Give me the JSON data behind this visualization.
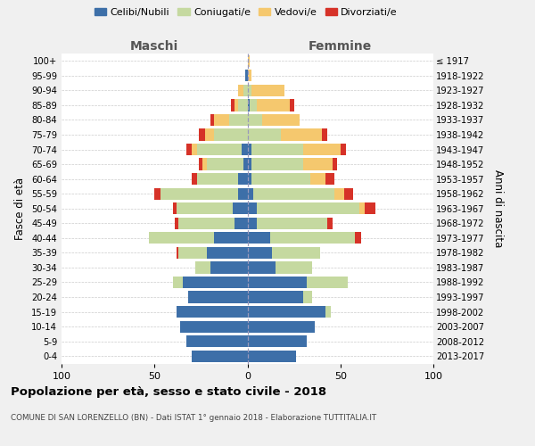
{
  "age_groups": [
    "0-4",
    "5-9",
    "10-14",
    "15-19",
    "20-24",
    "25-29",
    "30-34",
    "35-39",
    "40-44",
    "45-49",
    "50-54",
    "55-59",
    "60-64",
    "65-69",
    "70-74",
    "75-79",
    "80-84",
    "85-89",
    "90-94",
    "95-99",
    "100+"
  ],
  "birth_years": [
    "2013-2017",
    "2008-2012",
    "2003-2007",
    "1998-2002",
    "1993-1997",
    "1988-1992",
    "1983-1987",
    "1978-1982",
    "1973-1977",
    "1968-1972",
    "1963-1967",
    "1958-1962",
    "1953-1957",
    "1948-1952",
    "1943-1947",
    "1938-1942",
    "1933-1937",
    "1928-1932",
    "1923-1927",
    "1918-1922",
    "≤ 1917"
  ],
  "males": {
    "celibi": [
      30,
      33,
      36,
      38,
      32,
      35,
      20,
      22,
      18,
      7,
      8,
      5,
      5,
      2,
      3,
      0,
      0,
      0,
      0,
      1,
      0
    ],
    "coniugati": [
      0,
      0,
      0,
      0,
      0,
      5,
      8,
      15,
      35,
      30,
      30,
      42,
      22,
      20,
      24,
      18,
      10,
      5,
      2,
      0,
      0
    ],
    "vedovi": [
      0,
      0,
      0,
      0,
      0,
      0,
      0,
      0,
      0,
      0,
      0,
      0,
      0,
      2,
      3,
      5,
      8,
      2,
      3,
      0,
      0
    ],
    "divorziati": [
      0,
      0,
      0,
      0,
      0,
      0,
      0,
      1,
      0,
      2,
      2,
      3,
      3,
      2,
      3,
      3,
      2,
      2,
      0,
      0,
      0
    ]
  },
  "females": {
    "nubili": [
      26,
      32,
      36,
      42,
      30,
      32,
      15,
      13,
      12,
      5,
      5,
      3,
      2,
      2,
      2,
      0,
      0,
      1,
      0,
      0,
      0
    ],
    "coniugate": [
      0,
      0,
      0,
      3,
      5,
      22,
      20,
      26,
      46,
      38,
      55,
      44,
      32,
      28,
      28,
      18,
      8,
      4,
      2,
      0,
      0
    ],
    "vedove": [
      0,
      0,
      0,
      0,
      0,
      0,
      0,
      0,
      0,
      0,
      3,
      5,
      8,
      16,
      20,
      22,
      20,
      18,
      18,
      2,
      1
    ],
    "divorziate": [
      0,
      0,
      0,
      0,
      0,
      0,
      0,
      0,
      3,
      3,
      6,
      5,
      5,
      2,
      3,
      3,
      0,
      2,
      0,
      0,
      0
    ]
  },
  "colors": {
    "celibi": "#3d6fa8",
    "coniugati": "#c5d9a0",
    "vedovi": "#f5c86e",
    "divorziati": "#d63228"
  },
  "xlim": 100,
  "title": "Popolazione per età, sesso e stato civile - 2018",
  "subtitle": "COMUNE DI SAN LORENZELLO (BN) - Dati ISTAT 1° gennaio 2018 - Elaborazione TUTTITALIA.IT",
  "xlabel_left": "Maschi",
  "xlabel_right": "Femmine",
  "ylabel_left": "Fasce di età",
  "ylabel_right": "Anni di nascita",
  "legend_labels": [
    "Celibi/Nubili",
    "Coniugati/e",
    "Vedovi/e",
    "Divorziati/e"
  ],
  "bg_color": "#f0f0f0",
  "plot_bg": "#ffffff"
}
